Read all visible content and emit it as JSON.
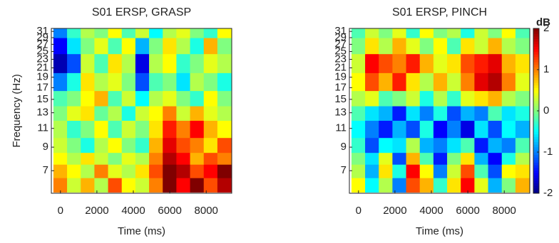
{
  "chart_data": [
    {
      "type": "heatmap",
      "title": "S01 ERSP, GRASP",
      "x_label": "Time (ms)",
      "y_label": "Frequency (Hz)",
      "colormap": "jet",
      "vlim": [
        -2,
        2
      ],
      "y_scale": "log",
      "xlim": [
        -500,
        9400
      ],
      "ylim": [
        5.5,
        32
      ],
      "xticks": [
        0,
        2000,
        4000,
        6000,
        8000
      ],
      "yticks": [
        7,
        9,
        11,
        13,
        15,
        17,
        19,
        21,
        23,
        25,
        27,
        29,
        31
      ],
      "x": [
        0,
        750,
        1500,
        2250,
        3000,
        3750,
        4500,
        5250,
        6000,
        6750,
        7500,
        8250,
        9000
      ],
      "y": [
        6,
        7,
        8,
        9,
        11,
        13,
        15,
        18,
        22,
        27,
        31
      ],
      "values": [
        [
          1.0,
          0.3,
          0.8,
          0.2,
          1.2,
          0.5,
          0.3,
          1.0,
          2.0,
          1.5,
          2.0,
          1.2,
          1.8
        ],
        [
          0.8,
          0.5,
          0.2,
          1.0,
          0.4,
          0.2,
          0.6,
          1.2,
          2.0,
          1.8,
          1.2,
          1.5,
          2.0
        ],
        [
          0.5,
          0.2,
          0.6,
          0.3,
          0.0,
          0.4,
          0.2,
          1.0,
          1.8,
          1.5,
          0.8,
          1.2,
          1.0
        ],
        [
          0.3,
          0.0,
          -0.4,
          0.2,
          0.5,
          0.0,
          -0.3,
          0.8,
          1.6,
          1.2,
          1.0,
          0.6,
          1.2
        ],
        [
          0.2,
          -0.3,
          0.0,
          0.5,
          -0.2,
          0.3,
          0.0,
          0.6,
          1.4,
          1.0,
          1.5,
          0.8,
          0.5
        ],
        [
          0.0,
          0.4,
          0.6,
          -0.1,
          0.2,
          -0.4,
          0.3,
          0.5,
          1.0,
          0.3,
          0.8,
          0.4,
          0.2
        ],
        [
          -0.2,
          0.0,
          0.5,
          0.8,
          -0.2,
          0.3,
          -0.5,
          0.2,
          0.4,
          0.0,
          -0.3,
          0.5,
          0.0
        ],
        [
          -1.0,
          -0.4,
          0.6,
          0.2,
          0.4,
          0.0,
          -1.2,
          -0.2,
          0.0,
          -0.6,
          0.2,
          0.0,
          -0.4
        ],
        [
          -1.8,
          -1.2,
          0.3,
          -0.2,
          0.6,
          0.2,
          -1.6,
          0.2,
          0.5,
          -0.3,
          0.0,
          0.4,
          0.2
        ],
        [
          -1.5,
          -0.6,
          0.0,
          0.4,
          -0.2,
          0.5,
          -0.8,
          0.0,
          0.6,
          0.2,
          -0.4,
          0.8,
          0.0
        ],
        [
          -1.0,
          -0.3,
          0.2,
          0.0,
          0.5,
          -0.2,
          0.3,
          -0.5,
          0.2,
          0.4,
          0.0,
          -0.3,
          0.5
        ]
      ]
    },
    {
      "type": "heatmap",
      "title": "S01 ERSP, PINCH",
      "x_label": "Time (ms)",
      "colormap": "jet",
      "vlim": [
        -2,
        2
      ],
      "y_scale": "log",
      "xlim": [
        -500,
        9400
      ],
      "ylim": [
        5.5,
        32
      ],
      "xticks": [
        0,
        2000,
        4000,
        6000,
        8000
      ],
      "yticks": [
        7,
        9,
        11,
        13,
        15,
        17,
        19,
        21,
        23,
        25,
        27,
        29,
        31
      ],
      "x": [
        0,
        750,
        1500,
        2250,
        3000,
        3750,
        4500,
        5250,
        6000,
        6750,
        7500,
        8250,
        9000
      ],
      "y": [
        6,
        7,
        8,
        9,
        11,
        13,
        15,
        18,
        22,
        27,
        31
      ],
      "values": [
        [
          0.5,
          -0.5,
          0.2,
          -1.0,
          1.2,
          0.8,
          -0.3,
          0.6,
          1.5,
          0.4,
          -0.8,
          0.0,
          0.8
        ],
        [
          0.2,
          -0.8,
          0.6,
          -0.4,
          1.5,
          0.5,
          -1.0,
          0.3,
          1.2,
          -0.2,
          -1.2,
          0.5,
          0.6
        ],
        [
          0.0,
          -0.6,
          0.4,
          -1.2,
          0.8,
          -0.2,
          -1.4,
          0.0,
          0.6,
          -0.8,
          -1.5,
          -0.4,
          0.2
        ],
        [
          -0.3,
          -1.2,
          -0.5,
          -0.6,
          0.2,
          -0.8,
          -1.0,
          -0.6,
          -0.2,
          -1.4,
          -0.8,
          -1.0,
          -0.2
        ],
        [
          -0.5,
          -1.0,
          -1.4,
          -0.8,
          -1.2,
          -0.4,
          -1.5,
          -1.0,
          -1.6,
          -0.6,
          -1.2,
          -0.5,
          -0.8
        ],
        [
          -0.2,
          -0.6,
          -0.8,
          -1.4,
          -0.6,
          -1.0,
          -0.4,
          -1.2,
          -0.8,
          -1.0,
          -0.2,
          -0.6,
          -0.4
        ],
        [
          0.2,
          0.4,
          -0.2,
          0.0,
          0.3,
          -0.4,
          0.2,
          -0.3,
          0.4,
          0.6,
          0.8,
          0.2,
          0.0
        ],
        [
          0.5,
          1.2,
          0.8,
          1.4,
          0.6,
          0.2,
          0.8,
          0.3,
          1.0,
          1.6,
          1.8,
          1.0,
          0.4
        ],
        [
          0.3,
          1.5,
          1.2,
          1.0,
          1.4,
          0.8,
          0.4,
          0.6,
          1.2,
          1.4,
          1.6,
          0.8,
          0.6
        ],
        [
          0.0,
          0.6,
          0.2,
          0.8,
          0.4,
          0.0,
          0.5,
          -0.2,
          0.6,
          0.3,
          0.8,
          0.2,
          0.0
        ],
        [
          -0.2,
          0.3,
          0.0,
          0.4,
          -0.3,
          0.5,
          0.0,
          0.2,
          -0.4,
          0.3,
          0.0,
          0.5,
          -0.2
        ]
      ],
      "colorbar": {
        "label": "dB",
        "lim": [
          -2,
          2
        ],
        "ticks": [
          -2,
          -1,
          0,
          1,
          2
        ]
      }
    }
  ]
}
